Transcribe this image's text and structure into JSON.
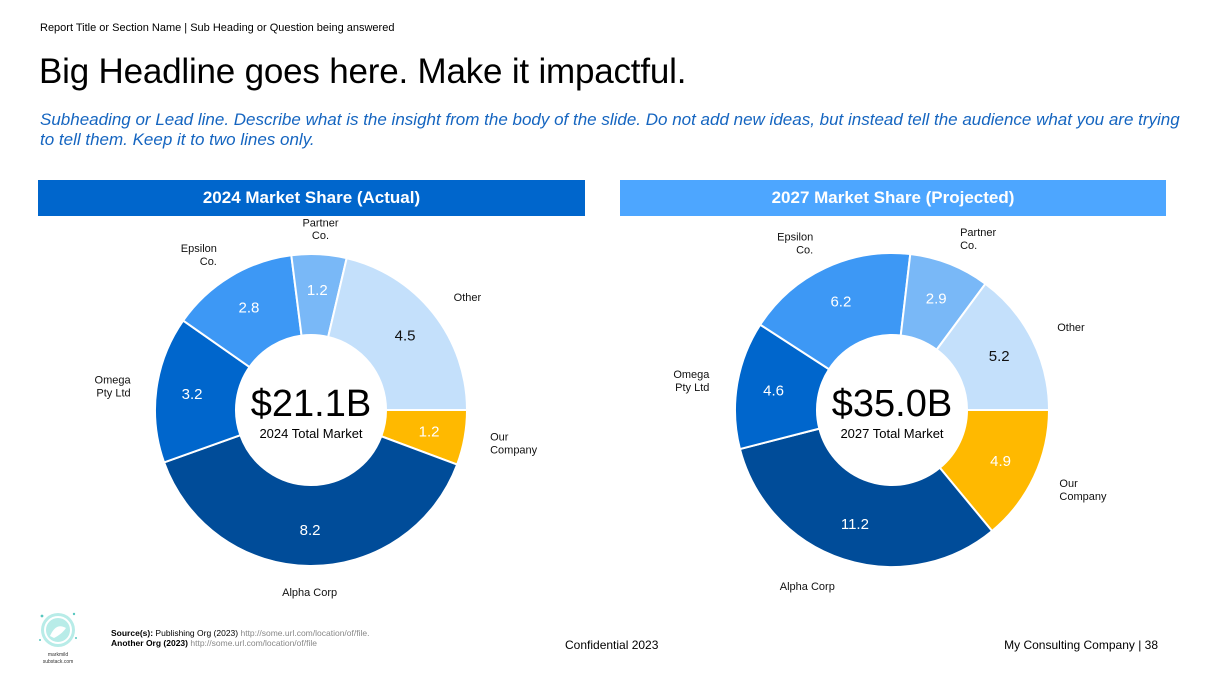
{
  "breadcrumb": "Report Title or Section Name | Sub Heading or Question being answered",
  "headline": "Big Headline goes here. Make it impactful.",
  "lead": "Subheading or Lead line. Describe what is the insight from the body of the slide. Do not add new ideas, but instead tell the audience what you are trying to tell them. Keep it to two lines only.",
  "colors": {
    "Our Company": "#ffb900",
    "Alpha Corp": "#004c99",
    "Omega Pty Ltd": "#0066cc",
    "Epsilon Co.": "#3d98f5",
    "Partner Co.": "#79b8f7",
    "Other": "#c4e0fb"
  },
  "chart_data": [
    {
      "type": "pie",
      "title": "2024 Market Share (Actual)",
      "center_value": "$21.1B",
      "center_label": "2024 Total Market",
      "slices": [
        {
          "label": "Our Company",
          "value": 1.2,
          "value_label": "1.2"
        },
        {
          "label": "Alpha Corp",
          "value": 8.2,
          "value_label": "8.2"
        },
        {
          "label": "Omega Pty Ltd",
          "value": 3.2,
          "value_label": "3.2"
        },
        {
          "label": "Epsilon Co.",
          "value": 2.8,
          "value_label": "2.8"
        },
        {
          "label": "Partner Co.",
          "value": 1.2,
          "value_label": "1.2"
        },
        {
          "label": "Other",
          "value": 4.5,
          "value_label": "4.5"
        }
      ]
    },
    {
      "type": "pie",
      "title": "2027 Market Share (Projected)",
      "center_value": "$35.0B",
      "center_label": "2027 Total Market",
      "slices": [
        {
          "label": "Our Company",
          "value": 4.9,
          "value_label": "4.9"
        },
        {
          "label": "Alpha Corp",
          "value": 11.2,
          "value_label": "11.2"
        },
        {
          "label": "Omega Pty Ltd",
          "value": 4.6,
          "value_label": "4.6"
        },
        {
          "label": "Epsilon Co.",
          "value": 6.2,
          "value_label": "6.2"
        },
        {
          "label": "Partner Co.",
          "value": 2.9,
          "value_label": "2.9"
        },
        {
          "label": "Other",
          "value": 5.2,
          "value_label": "5.2"
        }
      ]
    }
  ],
  "footer": {
    "sources_label": "Source(s):",
    "source1_org": "Publishing Org (2023)",
    "source1_url": "http://some.url.com/location/of/file.",
    "source2_org": "Another Org (2023)",
    "source2_url": "http://some.url.com/location/of/file",
    "confidential": "Confidential 2023",
    "company": "My Consulting Company | 38",
    "logo_text_1": "markmild",
    "logo_text_2": "substack.com"
  }
}
